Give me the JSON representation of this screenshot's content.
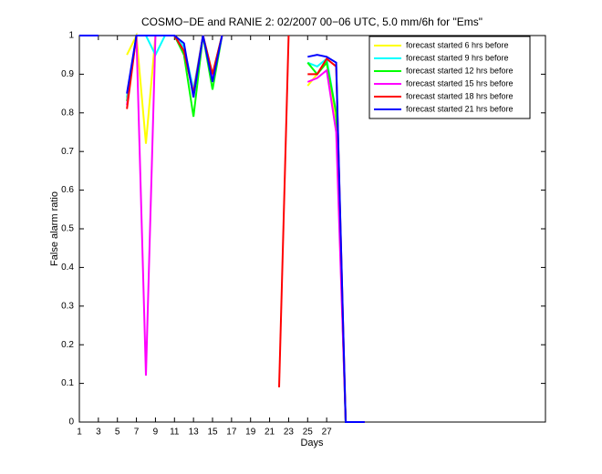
{
  "chart_data": {
    "type": "line",
    "title": "COSMO−DE and RANIE 2: 02/2007 00−06 UTC, 5.0 mm/6h for \"Ems\"",
    "x_label": "Days",
    "y_label": "False alarm ratio",
    "x": [
      1,
      2,
      3,
      4,
      5,
      6,
      7,
      8,
      9,
      10,
      11,
      12,
      13,
      14,
      15,
      16,
      17,
      18,
      19,
      20,
      21,
      22,
      23,
      24,
      25,
      26,
      27,
      28,
      29,
      30,
      31
    ],
    "series": [
      {
        "name": "forecast started 6 hrs before",
        "color": "#ffff00",
        "values": [
          1,
          1,
          1,
          null,
          null,
          0.95,
          1,
          0.72,
          1,
          1,
          1,
          0.97,
          0.85,
          1,
          0.9,
          1,
          null,
          null,
          null,
          null,
          null,
          null,
          null,
          null,
          0.87,
          0.9,
          0.93,
          0.78,
          0,
          0,
          0
        ]
      },
      {
        "name": "forecast started 9 hrs before",
        "color": "#00ffff",
        "values": [
          1,
          1,
          1,
          null,
          null,
          0.84,
          1,
          1,
          0.95,
          1,
          1,
          0.97,
          0.86,
          1,
          0.9,
          1,
          null,
          null,
          null,
          null,
          null,
          null,
          null,
          null,
          0.93,
          0.92,
          0.94,
          0.8,
          0,
          0,
          0
        ]
      },
      {
        "name": "forecast started 12 hrs before",
        "color": "#00ff00",
        "values": [
          1,
          1,
          1,
          null,
          null,
          0.83,
          1,
          1,
          1,
          1,
          1,
          0.95,
          0.79,
          1,
          0.86,
          1,
          null,
          null,
          null,
          null,
          null,
          null,
          null,
          null,
          0.93,
          0.9,
          0.93,
          0.8,
          0,
          0,
          0
        ]
      },
      {
        "name": "forecast started 15 hrs before",
        "color": "#ff00ff",
        "values": [
          1,
          1,
          1,
          null,
          null,
          0.82,
          1,
          0.12,
          1,
          1,
          1,
          0.96,
          0.85,
          1,
          0.89,
          1,
          null,
          null,
          null,
          null,
          null,
          null,
          null,
          null,
          0.88,
          0.89,
          0.91,
          0.75,
          0,
          0,
          0
        ]
      },
      {
        "name": "forecast started 18 hrs before",
        "color": "#ff0000",
        "values": [
          1,
          1,
          1,
          null,
          null,
          0.81,
          1,
          1,
          1,
          1,
          1,
          0.96,
          0.85,
          1,
          0.9,
          1,
          null,
          null,
          null,
          null,
          null,
          0.09,
          1,
          null,
          0.9,
          0.9,
          0.94,
          0.92,
          0,
          0,
          0
        ]
      },
      {
        "name": "forecast started 21 hrs before",
        "color": "#0000ff",
        "values": [
          1,
          1,
          1,
          null,
          null,
          0.85,
          1,
          1,
          1,
          1,
          1,
          0.98,
          0.84,
          1,
          0.88,
          1,
          null,
          null,
          null,
          null,
          null,
          null,
          null,
          null,
          0.945,
          0.95,
          0.945,
          0.93,
          0,
          0,
          0
        ]
      }
    ],
    "xlim": [
      1,
      50
    ],
    "xticks": [
      1,
      3,
      5,
      7,
      9,
      11,
      13,
      15,
      17,
      19,
      21,
      23,
      25,
      27
    ],
    "ylim": [
      0,
      1
    ],
    "yticks": [
      0,
      0.1,
      0.2,
      0.3,
      0.4,
      0.5,
      0.6,
      0.7,
      0.8,
      0.9,
      1
    ],
    "grid": false,
    "legend_position": "upper right"
  }
}
